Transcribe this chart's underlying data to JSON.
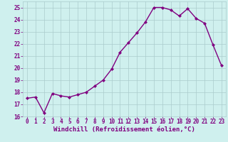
{
  "x": [
    0,
    1,
    2,
    3,
    4,
    5,
    6,
    7,
    8,
    9,
    10,
    11,
    12,
    13,
    14,
    15,
    16,
    17,
    18,
    19,
    20,
    21,
    22,
    23
  ],
  "y": [
    17.5,
    17.6,
    16.3,
    17.9,
    17.7,
    17.6,
    17.8,
    18.0,
    18.5,
    19.0,
    19.9,
    21.3,
    22.1,
    22.9,
    23.8,
    25.0,
    25.0,
    24.8,
    24.3,
    24.9,
    24.1,
    23.7,
    21.9,
    20.2
  ],
  "line_color": "#800080",
  "marker": "D",
  "marker_size": 2,
  "bg_color": "#cff0ee",
  "grid_color": "#aacccc",
  "ylim": [
    16,
    25.5
  ],
  "xlim": [
    -0.5,
    23.5
  ],
  "yticks": [
    16,
    17,
    18,
    19,
    20,
    21,
    22,
    23,
    24,
    25
  ],
  "xticks": [
    0,
    1,
    2,
    3,
    4,
    5,
    6,
    7,
    8,
    9,
    10,
    11,
    12,
    13,
    14,
    15,
    16,
    17,
    18,
    19,
    20,
    21,
    22,
    23
  ],
  "xlabel": "Windchill (Refroidissement éolien,°C)",
  "tick_color": "#800080",
  "label_color": "#800080",
  "tick_fontsize": 5.5,
  "xlabel_fontsize": 6.5,
  "linewidth": 1.0
}
